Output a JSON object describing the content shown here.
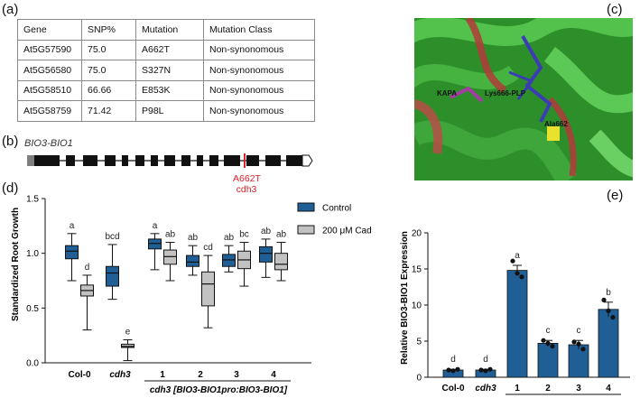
{
  "panels": {
    "a": "(a)",
    "b": "(b)",
    "c": "(c)",
    "d": "(d)",
    "e": "(e)"
  },
  "table": {
    "headers": [
      "Gene",
      "SNP%",
      "Mutation",
      "Mutation Class"
    ],
    "rows": [
      [
        "At5G57590",
        "75.0",
        "A662T",
        "Non-synonomous"
      ],
      [
        "At5G56580",
        "75.0",
        "S327N",
        "Non-synonomous"
      ],
      [
        "At5G58510",
        "66.66",
        "E853K",
        "Non-synonomous"
      ],
      [
        "At5G58759",
        "71.42",
        "P98L",
        "Non-synonomous"
      ]
    ]
  },
  "gene_model": {
    "title": "BIO3-BIO1",
    "mutation_label": "A662T",
    "allele_label": "cdh3",
    "colors": {
      "exon": "#111111",
      "utr": "#7f7f7f",
      "mutation": "#e0202a"
    }
  },
  "structure": {
    "labels": [
      "KAPA",
      "Lys666-PLP",
      "Ala662"
    ],
    "colors": {
      "helix": "#3fa63c",
      "loop": "#b33a3a",
      "ligand": "#3c3cb4",
      "kapa": "#a43ca4",
      "ala": "#e8e22e"
    }
  },
  "chart_data": [
    {
      "type": "box",
      "ylabel": "Standardized Root Growth",
      "ylim": [
        0,
        1.5
      ],
      "yticks": [
        "0.0",
        "0.5",
        "1.0",
        "1.5"
      ],
      "categories": [
        "Col-0",
        "cdh3",
        "1",
        "2",
        "3",
        "4"
      ],
      "group_label": "cdh3 [BIO3-BIO1pro:BIO3-BIO1]",
      "legend": [
        "Control",
        "200 μM Cad"
      ],
      "legend_position": "top-right",
      "colors": {
        "Control": "#1f5f96",
        "Cad": "#c2c2c2"
      },
      "series": [
        {
          "name": "Control",
          "boxes": [
            {
              "min": 0.75,
              "q1": 0.95,
              "median": 1.02,
              "q3": 1.07,
              "max": 1.18,
              "letter": "a"
            },
            {
              "min": 0.58,
              "q1": 0.7,
              "median": 0.82,
              "q3": 0.88,
              "max": 1.08,
              "letter": "bcd"
            },
            {
              "min": 0.85,
              "q1": 1.04,
              "median": 1.09,
              "q3": 1.13,
              "max": 1.18,
              "letter": "a"
            },
            {
              "min": 0.8,
              "q1": 0.88,
              "median": 0.92,
              "q3": 0.98,
              "max": 1.07,
              "letter": "ab"
            },
            {
              "min": 0.83,
              "q1": 0.88,
              "median": 0.94,
              "q3": 0.99,
              "max": 1.07,
              "letter": "ab"
            },
            {
              "min": 0.78,
              "q1": 0.92,
              "median": 1.0,
              "q3": 1.06,
              "max": 1.13,
              "letter": "ab"
            }
          ]
        },
        {
          "name": "200 μM Cad",
          "boxes": [
            {
              "min": 0.3,
              "q1": 0.61,
              "median": 0.66,
              "q3": 0.71,
              "max": 0.8,
              "letter": "d"
            },
            {
              "min": 0.02,
              "q1": 0.14,
              "median": 0.15,
              "q3": 0.17,
              "max": 0.21,
              "letter": "e"
            },
            {
              "min": 0.75,
              "q1": 0.9,
              "median": 0.97,
              "q3": 1.03,
              "max": 1.1,
              "letter": "ab"
            },
            {
              "min": 0.32,
              "q1": 0.52,
              "median": 0.72,
              "q3": 0.83,
              "max": 0.98,
              "letter": "cd"
            },
            {
              "min": 0.7,
              "q1": 0.86,
              "median": 0.94,
              "q3": 1.02,
              "max": 1.1,
              "letter": "bc"
            },
            {
              "min": 0.75,
              "q1": 0.85,
              "median": 0.9,
              "q3": 1.0,
              "max": 1.1,
              "letter": "ab"
            }
          ]
        }
      ]
    },
    {
      "type": "bar",
      "ylabel": "Relative BIO3-BIO1 Expression",
      "ylim": [
        0,
        20
      ],
      "yticks": [
        "0",
        "5",
        "10",
        "15",
        "20"
      ],
      "categories": [
        "Col-0",
        "cdh3",
        "1",
        "2",
        "3",
        "4"
      ],
      "group_label": "cdh3 [BIO3-BIO1pro:BIO3-BIO1]",
      "values": [
        1.0,
        1.0,
        14.8,
        4.7,
        4.5,
        9.4
      ],
      "errors": [
        0.1,
        0.1,
        0.7,
        0.4,
        0.6,
        1.0
      ],
      "points": [
        [
          1.0,
          0.9,
          1.1
        ],
        [
          1.0,
          0.9,
          1.1
        ],
        [
          16.1,
          14.4,
          13.9
        ],
        [
          5.1,
          4.7,
          4.3
        ],
        [
          4.9,
          4.6,
          3.9
        ],
        [
          10.7,
          9.2,
          8.3
        ]
      ],
      "letters": [
        "d",
        "d",
        "a",
        "c",
        "c",
        "b"
      ],
      "color": "#1f5f96"
    }
  ]
}
